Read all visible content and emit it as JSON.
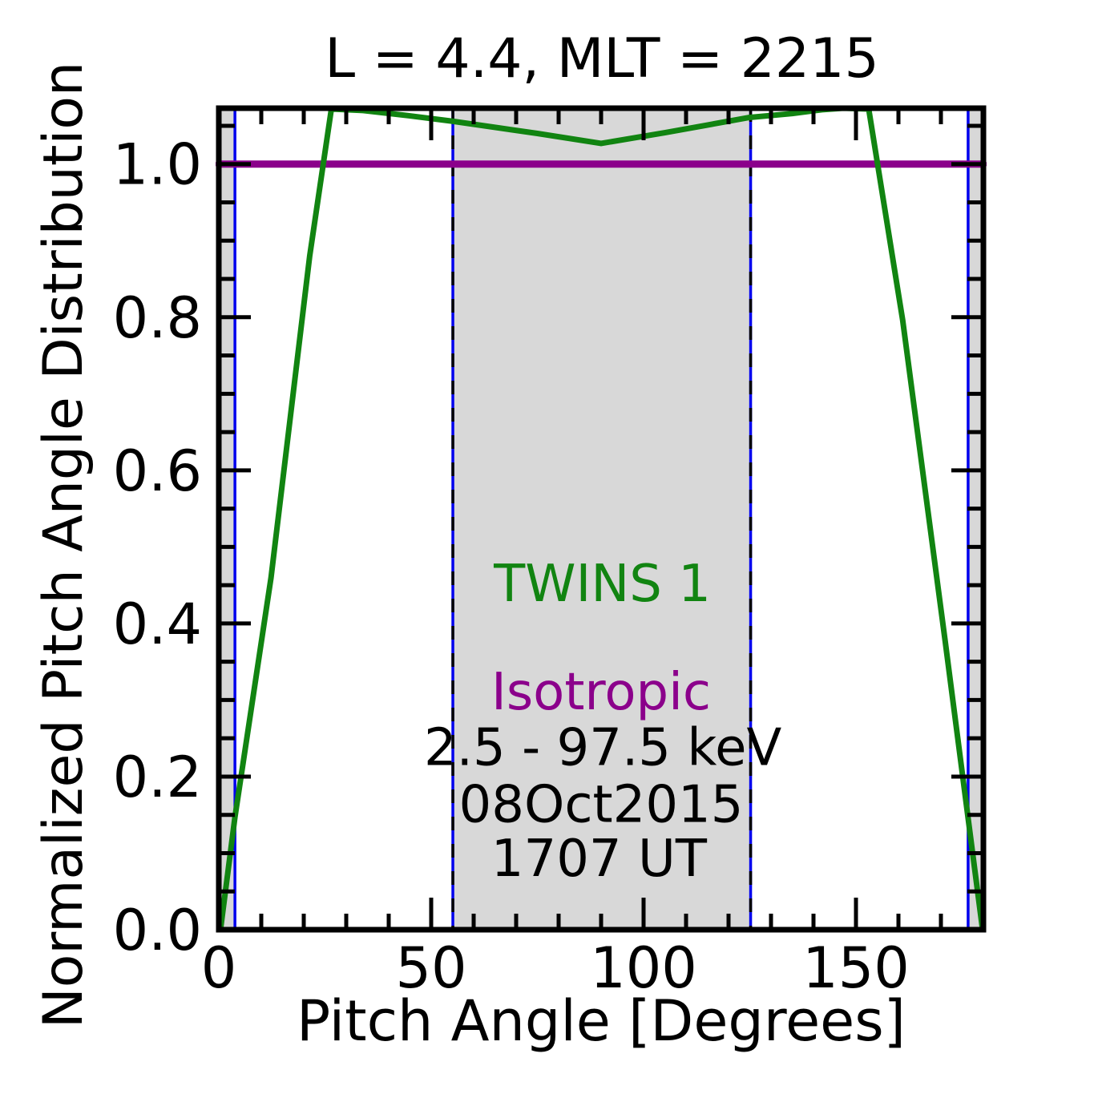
{
  "chart_data": {
    "type": "line",
    "title": "L =  4.4, MLT = 2215",
    "xlabel": "Pitch Angle [Degrees]",
    "ylabel": "Normalized Pitch Angle Distribution",
    "xlim": [
      0,
      180
    ],
    "ylim": [
      0,
      1.073
    ],
    "grid": false,
    "background_color": "#ffffff",
    "frame_color": "#000000",
    "x_ticks": {
      "major": [
        0,
        50,
        100,
        150
      ],
      "major_labels": [
        "0",
        "50",
        "100",
        "150"
      ],
      "minor_step": 10
    },
    "y_ticks": {
      "major": [
        0.0,
        0.2,
        0.4,
        0.6,
        0.8,
        1.0
      ],
      "major_labels": [
        "0.0",
        "0.2",
        "0.4",
        "0.6",
        "0.8",
        "1.0"
      ],
      "minor_step": 0.05
    },
    "shaded_regions": {
      "color": "#d8d8d8",
      "x_ranges": [
        [
          0,
          3.8
        ],
        [
          55.1,
          125.2
        ],
        [
          176.4,
          180
        ]
      ]
    },
    "boundary_lines": {
      "blue": "#0000ee",
      "black_dash": "#000000",
      "solid_x": [
        3.8,
        176.4
      ],
      "dashed_x": [
        55.1,
        125.2
      ]
    },
    "series": [
      {
        "name": "TWINS 1",
        "color": "#118411",
        "width": 7,
        "x": [
          0.4,
          3.8,
          12.3,
          21.4,
          26.5,
          34,
          45,
          55,
          65,
          75,
          90,
          105,
          115,
          125,
          135,
          142,
          147,
          153,
          161,
          171,
          179.8
        ],
        "y": [
          0,
          0.147,
          0.46,
          0.88,
          1.072,
          1.07,
          1.063,
          1.056,
          1.048,
          1.04,
          1.027,
          1.041,
          1.051,
          1.061,
          1.066,
          1.071,
          1.073,
          1.072,
          0.796,
          0.377,
          0
        ]
      },
      {
        "name": "Isotropic",
        "color": "#8b008b",
        "width": 9,
        "x": [
          0,
          180
        ],
        "y": [
          1.0,
          1.0
        ]
      }
    ],
    "annotations": [
      {
        "text": "TWINS 1",
        "color": "#118411",
        "x": 90.3,
        "y": 0.429
      },
      {
        "text": "Isotropic",
        "color": "#8b008b",
        "x": 90.0,
        "y": 0.288
      },
      {
        "text": "2.5 - 97.5 keV",
        "color": "#000000",
        "x": 90.4,
        "y": 0.215
      },
      {
        "text": "08Oct2015",
        "color": "#000000",
        "x": 90.0,
        "y": 0.141
      },
      {
        "text": "1707 UT",
        "color": "#000000",
        "x": 89.5,
        "y": 0.07
      }
    ]
  }
}
